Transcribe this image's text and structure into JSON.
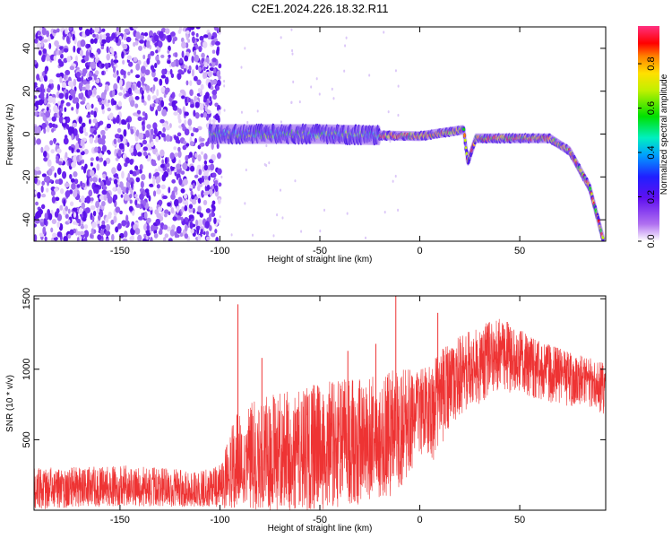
{
  "title": "C2E1.2024.226.18.32.R11",
  "colorbar": {
    "label": "Normalized spectral amplitude",
    "ticks": [
      "0.0",
      "0.2",
      "0.4",
      "0.6",
      "0.8"
    ],
    "range": [
      0,
      0.97
    ]
  },
  "chart_data": [
    {
      "type": "heatmap",
      "title": "C2E1.2024.226.18.32.R11",
      "xlabel": "Height of straight line (km)",
      "ylabel": "Frequency (Hz)",
      "xlim": [
        -193,
        93
      ],
      "ylim": [
        -50,
        50
      ],
      "xticks": [
        -150,
        -100,
        -50,
        0,
        50
      ],
      "yticks": [
        -40,
        -20,
        0,
        20,
        40
      ],
      "description_points": {
        "noise_region_x": [
          -193,
          -100
        ],
        "signal_line": [
          {
            "x": -105,
            "y": 0
          },
          {
            "x": -50,
            "y": 0
          },
          {
            "x": 0,
            "y": -1
          },
          {
            "x": 22,
            "y": 2
          },
          {
            "x": 24,
            "y": -13
          },
          {
            "x": 28,
            "y": -2
          },
          {
            "x": 65,
            "y": -2
          },
          {
            "x": 75,
            "y": -8
          },
          {
            "x": 85,
            "y": -25
          },
          {
            "x": 92,
            "y": -50
          }
        ]
      },
      "colormap": [
        "#ffffff",
        "#d9b8f5",
        "#a060f0",
        "#7a2cf0",
        "#3030ff",
        "#00c8ff",
        "#00e060",
        "#e0e000",
        "#ff8000",
        "#ff0000",
        "#ff3080"
      ]
    },
    {
      "type": "line",
      "xlabel": "Height of straight line (km)",
      "ylabel": "SNR (10 * v/v)",
      "xlim": [
        -193,
        93
      ],
      "ylim": [
        0,
        1520
      ],
      "xticks": [
        -150,
        -100,
        -50,
        0,
        50
      ],
      "yticks": [
        500,
        1000,
        1500
      ],
      "color": "#ee3333",
      "envelope": [
        {
          "x": -193,
          "low": 0,
          "mid": 150,
          "high": 300
        },
        {
          "x": -150,
          "low": 30,
          "mid": 150,
          "high": 320
        },
        {
          "x": -110,
          "low": 20,
          "mid": 120,
          "high": 280
        },
        {
          "x": -100,
          "low": 10,
          "mid": 150,
          "high": 320
        },
        {
          "x": -92,
          "low": 20,
          "mid": 260,
          "high": 700
        },
        {
          "x": -80,
          "low": 0,
          "mid": 320,
          "high": 800
        },
        {
          "x": -50,
          "low": 0,
          "mid": 380,
          "high": 900
        },
        {
          "x": -30,
          "low": 30,
          "mid": 420,
          "high": 950
        },
        {
          "x": -10,
          "low": 120,
          "mid": 500,
          "high": 1000
        },
        {
          "x": 0,
          "low": 400,
          "mid": 800,
          "high": 1000
        },
        {
          "x": 8,
          "low": 350,
          "mid": 750,
          "high": 1100
        },
        {
          "x": 15,
          "low": 600,
          "mid": 950,
          "high": 1200
        },
        {
          "x": 40,
          "low": 850,
          "mid": 1100,
          "high": 1380
        },
        {
          "x": 60,
          "low": 780,
          "mid": 1000,
          "high": 1200
        },
        {
          "x": 80,
          "low": 720,
          "mid": 930,
          "high": 1100
        },
        {
          "x": 93,
          "low": 680,
          "mid": 880,
          "high": 1050
        }
      ],
      "spikes": [
        {
          "x": -91,
          "y": 1460
        },
        {
          "x": -79,
          "y": 1080
        },
        {
          "x": -36,
          "y": 1130
        },
        {
          "x": -22,
          "y": 1180
        },
        {
          "x": -12,
          "y": 1520
        },
        {
          "x": 9,
          "y": 1400
        }
      ]
    }
  ]
}
